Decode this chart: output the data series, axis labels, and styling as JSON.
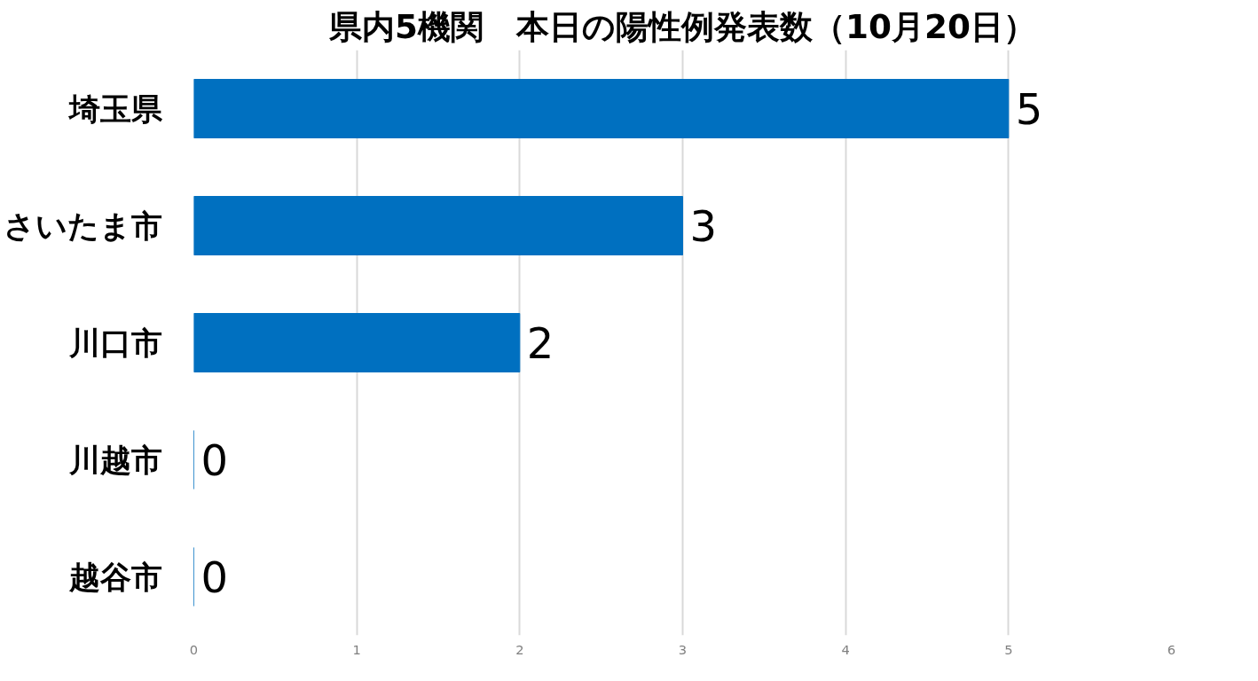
{
  "chart_data": {
    "type": "bar",
    "orientation": "horizontal",
    "title": "県内5機関　本日の陽性例発表数（10月20日）",
    "categories": [
      "埼玉県",
      "さいたま市",
      "川口市",
      "川越市",
      "越谷市"
    ],
    "values": [
      5,
      3,
      2,
      0,
      0
    ],
    "color": "#0070c0",
    "xlim": [
      0,
      6
    ],
    "xticks": [
      0,
      1,
      2,
      3,
      4,
      5,
      6
    ],
    "grid": "x",
    "data_labels": true
  }
}
